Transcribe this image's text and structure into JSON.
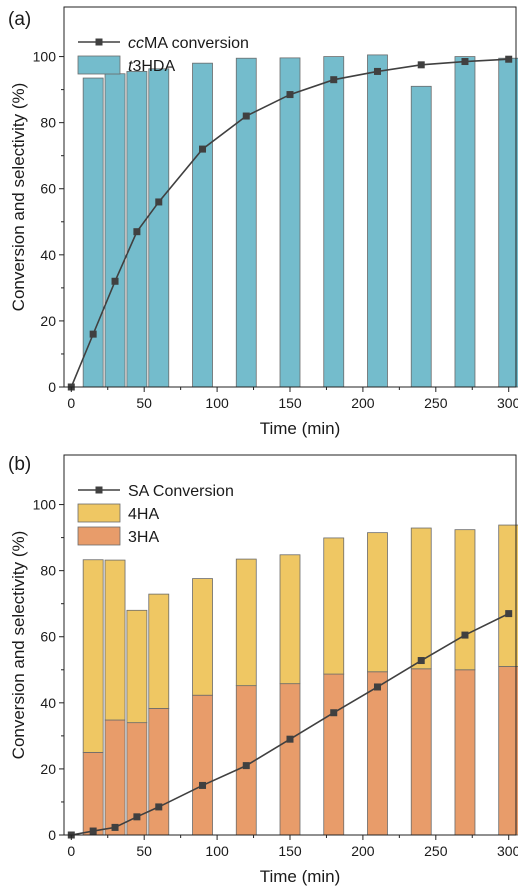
{
  "chart_data": [
    {
      "type": "bar",
      "panel_label": "(a)",
      "xlabel": "Time (min)",
      "ylabel": "Conversion and selectivity (%)",
      "xlim": [
        -5,
        305
      ],
      "ylim": [
        0,
        115
      ],
      "xticks": [
        0,
        50,
        100,
        150,
        200,
        250,
        300
      ],
      "yticks": [
        0,
        20,
        40,
        60,
        80,
        100
      ],
      "legend_position": "top-left",
      "bar_series": [
        {
          "name": "t3HDA",
          "name_prefix": "t",
          "name_suffix": "3HDA",
          "color": "#74bccc",
          "x": [
            15,
            30,
            45,
            60,
            90,
            120,
            150,
            180,
            210,
            240,
            270,
            300
          ],
          "values": [
            93.5,
            94.8,
            95.5,
            96.3,
            98,
            99.5,
            99.6,
            100,
            100.5,
            91,
            100,
            99.5
          ]
        }
      ],
      "line_series": [
        {
          "name": "ccMA conversion",
          "name_prefix": "cc",
          "name_suffix": "MA conversion",
          "color": "#404040",
          "x": [
            0,
            15,
            30,
            45,
            60,
            90,
            120,
            150,
            180,
            210,
            240,
            270,
            300
          ],
          "values": [
            0,
            16,
            32,
            47,
            56,
            72,
            82,
            88.5,
            93,
            95.5,
            97.5,
            98.5,
            99.2
          ]
        }
      ]
    },
    {
      "type": "bar",
      "stacked": true,
      "panel_label": "(b)",
      "xlabel": "Time (min)",
      "ylabel": "Conversion and selectivity (%)",
      "xlim": [
        -5,
        305
      ],
      "ylim": [
        0,
        115
      ],
      "xticks": [
        0,
        50,
        100,
        150,
        200,
        250,
        300
      ],
      "yticks": [
        0,
        20,
        40,
        60,
        80,
        100
      ],
      "legend_position": "top-left",
      "bar_series": [
        {
          "name": "3HA",
          "color": "#e89c6a",
          "x": [
            15,
            30,
            45,
            60,
            90,
            120,
            150,
            180,
            210,
            240,
            270,
            300
          ],
          "values": [
            25,
            34.8,
            34,
            38.3,
            42.3,
            45.2,
            45.8,
            48.7,
            49.4,
            50.3,
            50,
            51
          ]
        },
        {
          "name": "4HA",
          "color": "#efc763",
          "x": [
            15,
            30,
            45,
            60,
            90,
            120,
            150,
            180,
            210,
            240,
            270,
            300
          ],
          "values": [
            58.3,
            48.4,
            34,
            34.6,
            35.3,
            38.3,
            39,
            41.2,
            42.1,
            42.6,
            42.4,
            42.8
          ]
        }
      ],
      "line_series": [
        {
          "name": "SA Conversion",
          "color": "#404040",
          "x": [
            0,
            15,
            30,
            45,
            60,
            90,
            120,
            150,
            180,
            210,
            240,
            270,
            300
          ],
          "values": [
            0,
            1.2,
            2.3,
            5.5,
            8.5,
            15,
            21,
            29,
            37,
            44.8,
            52.8,
            60.5,
            67
          ]
        }
      ]
    }
  ]
}
